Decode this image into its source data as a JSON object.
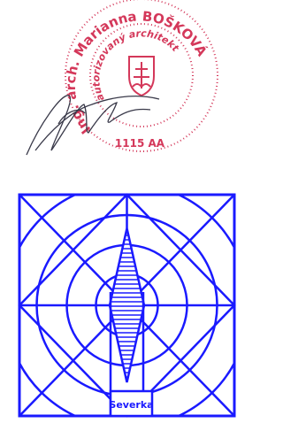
{
  "stamp": {
    "name": "Ing. arch. Marianna BOŠKOVÁ",
    "role": "autorizovaný architekt",
    "number": "1115 AA"
  },
  "north_sign": {
    "label": "Severka"
  }
}
